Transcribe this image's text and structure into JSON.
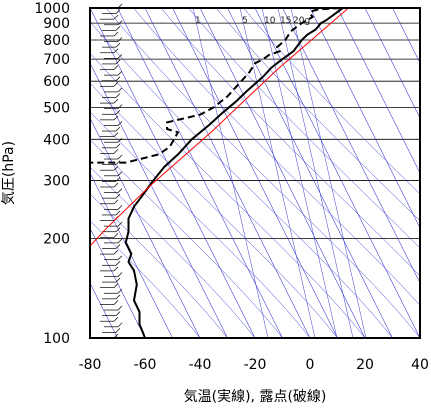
{
  "chart_data": {
    "type": "line",
    "title": "",
    "xlabel": "気温(実線), 露点(破線)",
    "ylabel": "気圧(hPa)",
    "xlim": [
      -80,
      40
    ],
    "ylim": [
      1000,
      100
    ],
    "y_scale": "log",
    "x_ticks": [
      "-80",
      "-60",
      "-40",
      "-20",
      "0",
      "20",
      "40"
    ],
    "y_ticks": [
      "100",
      "200",
      "300",
      "400",
      "500",
      "600",
      "700",
      "800",
      "900",
      "1000"
    ],
    "mixing_ratio_labels": [
      "1",
      "5",
      "10",
      "15",
      "20g"
    ],
    "colors": {
      "temperature": "#000000",
      "dewpoint": "#000000",
      "parcel": "#ff0000",
      "isotherms": "#3a3ad0"
    },
    "series": [
      {
        "style": "solid",
        "points": [
          [
            12,
            1000
          ],
          [
            9,
            960
          ],
          [
            6,
            920
          ],
          [
            4,
            900
          ],
          [
            2,
            860
          ],
          [
            -1,
            830
          ],
          [
            -3,
            800
          ],
          [
            -6,
            740
          ],
          [
            -10,
            700
          ],
          [
            -14,
            660
          ],
          [
            -17,
            620
          ],
          [
            -23,
            560
          ],
          [
            -27,
            520
          ],
          [
            -32,
            480
          ],
          [
            -37,
            440
          ],
          [
            -43,
            400
          ],
          [
            -48,
            360
          ],
          [
            -53,
            330
          ],
          [
            -57,
            300
          ],
          [
            -61,
            270
          ],
          [
            -64,
            250
          ],
          [
            -66,
            230
          ],
          [
            -66,
            210
          ],
          [
            -67,
            195
          ],
          [
            -65,
            180
          ],
          [
            -66,
            170
          ],
          [
            -64,
            160
          ],
          [
            -63,
            145
          ],
          [
            -64,
            130
          ],
          [
            -62,
            120
          ],
          [
            -62,
            110
          ],
          [
            -61,
            105
          ],
          [
            -60,
            100
          ]
        ]
      },
      {
        "style": "dashed",
        "points": [
          [
            11,
            1000
          ],
          [
            3,
            990
          ],
          [
            1,
            980
          ],
          [
            0,
            960
          ],
          [
            1,
            940
          ],
          [
            -3,
            900
          ],
          [
            -7,
            850
          ],
          [
            -9,
            800
          ],
          [
            -12,
            760
          ],
          [
            -11,
            740
          ],
          [
            -15,
            720
          ],
          [
            -17,
            700
          ],
          [
            -20,
            680
          ],
          [
            -22,
            640
          ],
          [
            -25,
            600
          ],
          [
            -30,
            540
          ],
          [
            -35,
            500
          ],
          [
            -40,
            475
          ],
          [
            -52,
            450
          ],
          [
            -52,
            430
          ],
          [
            -48,
            420
          ],
          [
            -51,
            380
          ],
          [
            -55,
            360
          ],
          [
            -67,
            340
          ],
          [
            -82,
            340
          ]
        ]
      },
      {
        "style": "solid-red",
        "points": [
          [
            14,
            1000
          ],
          [
            -12,
            650
          ],
          [
            -36,
            420
          ],
          [
            -58,
            290
          ],
          [
            -74,
            215
          ],
          [
            -80,
            190
          ]
        ]
      }
    ],
    "grid": true
  }
}
